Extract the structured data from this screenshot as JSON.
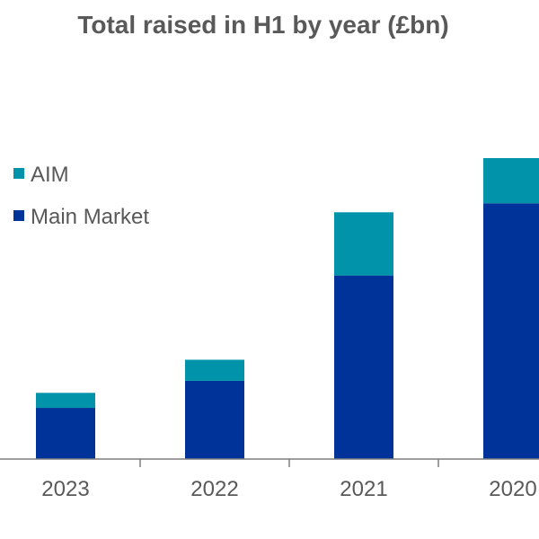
{
  "chart_data": {
    "type": "bar",
    "stacked": true,
    "title": "Total raised in H1 by year (£bn)",
    "categories": [
      "2023",
      "2022",
      "2021",
      "2020"
    ],
    "series": [
      {
        "name": "Main Market",
        "values": [
          1.7,
          2.6,
          6.1,
          8.5
        ],
        "color": "#003399"
      },
      {
        "name": "AIM",
        "values": [
          0.5,
          0.7,
          2.1,
          1.5
        ],
        "color": "#0093AA"
      }
    ],
    "ylim": [
      0,
      10
    ],
    "grid": false,
    "legend_position": "top-left"
  }
}
